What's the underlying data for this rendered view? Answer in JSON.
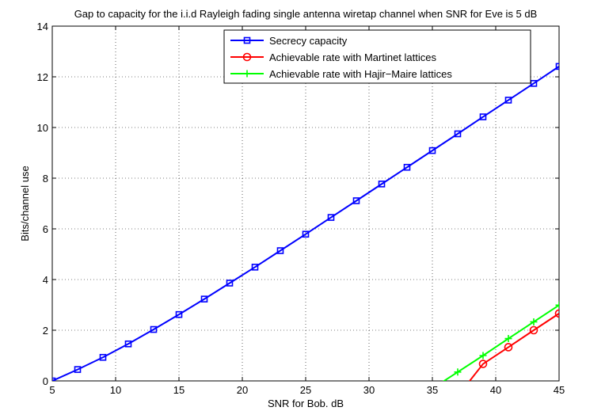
{
  "chart_data": {
    "type": "line",
    "title": "Gap to capacity for the i.i.d Rayleigh fading single antenna wiretap channel when SNR for Eve is 5 dB",
    "xlabel": "SNR for Bob. dB",
    "ylabel": "Bits/channel use",
    "xlim": [
      5,
      45
    ],
    "ylim": [
      0,
      14
    ],
    "xticks": [
      5,
      10,
      15,
      20,
      25,
      30,
      35,
      40,
      45
    ],
    "yticks": [
      0,
      2,
      4,
      6,
      8,
      10,
      12,
      14
    ],
    "grid": true,
    "legend_position": "top-right",
    "series": [
      {
        "name": "Secrecy capacity",
        "color": "#0000ff",
        "marker": "square",
        "x": [
          5,
          7,
          9,
          11,
          13,
          15,
          17,
          19,
          21,
          23,
          25,
          27,
          29,
          31,
          33,
          35,
          37,
          39,
          41,
          43,
          45
        ],
        "y": [
          0.0,
          0.45,
          0.93,
          1.46,
          2.03,
          2.62,
          3.23,
          3.86,
          4.49,
          5.14,
          5.79,
          6.45,
          7.11,
          7.77,
          8.43,
          9.09,
          9.75,
          10.42,
          11.08,
          11.74,
          12.41
        ]
      },
      {
        "name": "Achievable rate with Martinet lattices",
        "color": "#ff0000",
        "marker": "circle",
        "x": [
          37,
          39,
          41,
          43,
          45
        ],
        "y": [
          -0.6,
          0.67,
          1.33,
          2.0,
          2.66
        ]
      },
      {
        "name": "Achievable rate with Hajir−Maire lattices",
        "color": "#00ff00",
        "marker": "plus",
        "x": [
          35,
          37,
          39,
          41,
          43,
          45
        ],
        "y": [
          -0.3,
          0.35,
          1.0,
          1.67,
          2.33,
          2.99
        ]
      }
    ]
  }
}
